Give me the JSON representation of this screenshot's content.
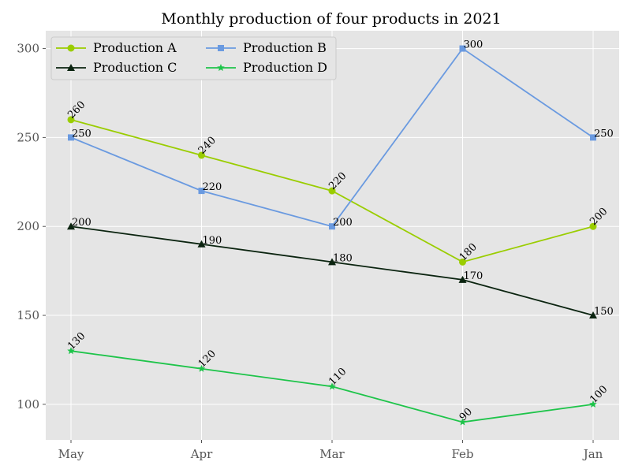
{
  "chart_data": {
    "type": "line",
    "title": "Monthly production of four products in 2021",
    "xlabel": "",
    "ylabel": "",
    "categories": [
      "May",
      "Apr",
      "Mar",
      "Feb",
      "Jan"
    ],
    "ylim": [
      80,
      310
    ],
    "yticks": [
      100,
      150,
      200,
      250,
      300
    ],
    "grid": true,
    "legend_position": "top-left",
    "background": "#e5e5e5",
    "series": [
      {
        "name": "Production A",
        "values": [
          260,
          240,
          220,
          180,
          200
        ],
        "color": "#9acd00",
        "marker": "circle",
        "label_rotated": true
      },
      {
        "name": "Production B",
        "values": [
          250,
          220,
          200,
          300,
          250
        ],
        "color": "#6a9ae0",
        "marker": "square",
        "label_rotated": false
      },
      {
        "name": "Production C",
        "values": [
          200,
          190,
          180,
          170,
          150
        ],
        "color": "#0b2410",
        "marker": "triangle",
        "label_rotated": false
      },
      {
        "name": "Production D",
        "values": [
          130,
          120,
          110,
          90,
          100
        ],
        "color": "#1ec44a",
        "marker": "star",
        "label_rotated": true
      }
    ]
  }
}
